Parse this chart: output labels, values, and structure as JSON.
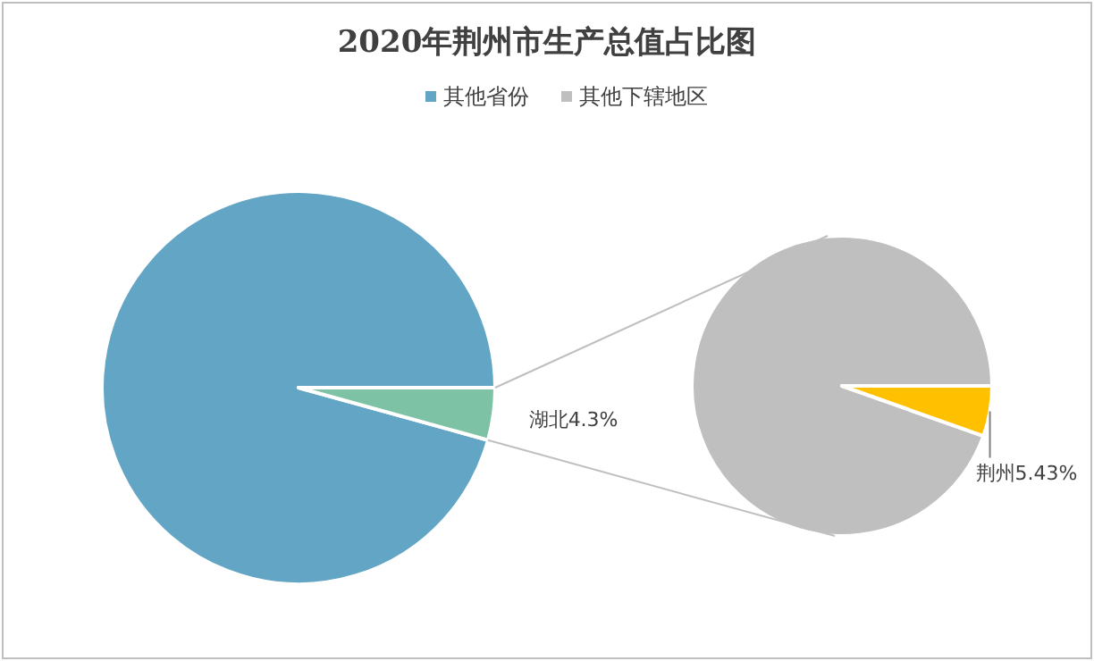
{
  "chart_data": [
    {
      "type": "pie",
      "title": "2020年荆州市生产总值占比图",
      "legend": "top",
      "categories": [
        "其他省份",
        "湖北"
      ],
      "values": [
        95.7,
        4.3
      ],
      "colors": [
        "#62a5c4",
        "#7dc2a4"
      ],
      "value_labels": [
        null,
        "4.3%"
      ]
    },
    {
      "type": "pie",
      "legend": "top",
      "categories": [
        "其他下辖地区",
        "荆州"
      ],
      "values": [
        94.57,
        5.43
      ],
      "colors": [
        "#bfbfbf",
        "#ffc000"
      ],
      "value_labels": [
        null,
        "5.43%"
      ]
    }
  ]
}
